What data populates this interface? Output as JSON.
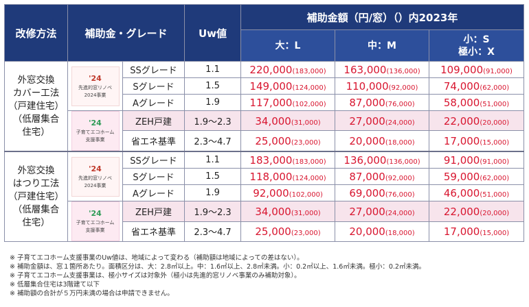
{
  "header": {
    "method": "改修方法",
    "grade": "補助金・グレード",
    "uw": "Uw値",
    "amount_title": "補助金額（円/窓）（）内2023年",
    "size_large": "大：L",
    "size_medium": "中：M",
    "size_small_line1": "小：S",
    "size_small_line2": "極小：X"
  },
  "groups": [
    {
      "method_lines": [
        "外窓交換",
        "カバー工法",
        "（戸建住宅）",
        "（低層集合",
        "住宅）"
      ],
      "logos": [
        {
          "icon": "'24",
          "text_lines": [
            "先進的窓リノベ",
            "2024事業"
          ],
          "icon_name": "window-renovation-logo"
        },
        {
          "icon": "'24",
          "text_lines": [
            "子育てエコホーム",
            "支援事業"
          ],
          "icon_name": "kodomo-eco-home-logo"
        }
      ],
      "rows": [
        {
          "grade": "SSグレード",
          "uw": "1.1",
          "l": "220,000",
          "l_prev": "(183,000)",
          "m": "163,000",
          "m_prev": "(136,000)",
          "s": "109,000",
          "s_prev": "(91,000)",
          "zeh": false
        },
        {
          "grade": "Sグレード",
          "uw": "1.5",
          "l": "149,000",
          "l_prev": "(124,000)",
          "m": "110,000",
          "m_prev": "(92,000)",
          "s": "74,000",
          "s_prev": "(62,000)",
          "zeh": false
        },
        {
          "grade": "Aグレード",
          "uw": "1.9",
          "l": "117,000",
          "l_prev": "(102,000)",
          "m": "87,000",
          "m_prev": "(76,000)",
          "s": "58,000",
          "s_prev": "(51,000)",
          "zeh": false
        },
        {
          "grade": "ZEH戸建",
          "uw": "1.9～2.3",
          "l": "34,000",
          "l_prev": "(31,000)",
          "m": "27,000",
          "m_prev": "(24,000)",
          "s": "22,000",
          "s_prev": "(20,000)",
          "zeh": true
        },
        {
          "grade": "省エネ基準",
          "uw": "2.3～4.7",
          "l": "25,000",
          "l_prev": "(23,000)",
          "m": "20,000",
          "m_prev": "(18,000)",
          "s": "17,000",
          "s_prev": "(15,000)",
          "zeh": false
        }
      ]
    },
    {
      "method_lines": [
        "外窓交換",
        "はつり工法",
        "（戸建住宅）",
        "（低層集合",
        "住宅）"
      ],
      "logos": [
        {
          "icon": "'24",
          "text_lines": [
            "先進的窓リノベ",
            "2024事業"
          ],
          "icon_name": "window-renovation-logo"
        },
        {
          "icon": "'24",
          "text_lines": [
            "子育てエコホーム",
            "支援事業"
          ],
          "icon_name": "kodomo-eco-home-logo"
        }
      ],
      "rows": [
        {
          "grade": "SSグレード",
          "uw": "1.1",
          "l": "183,000",
          "l_prev": "(183,000)",
          "m": "136,000",
          "m_prev": "(136,000)",
          "s": "91,000",
          "s_prev": "(91,000)",
          "zeh": false
        },
        {
          "grade": "Sグレード",
          "uw": "1.5",
          "l": "118,000",
          "l_prev": "(124,000)",
          "m": "87,000",
          "m_prev": "(92,000)",
          "s": "59,000",
          "s_prev": "(62,000)",
          "zeh": false
        },
        {
          "grade": "Aグレード",
          "uw": "1.9",
          "l": "92,000",
          "l_prev": "(102,000)",
          "m": "69,000",
          "m_prev": "(76,000)",
          "s": "46,000",
          "s_prev": "(51,000)",
          "zeh": false
        },
        {
          "grade": "ZEH戸建",
          "uw": "1.9～2.3",
          "l": "34,000",
          "l_prev": "(31,000)",
          "m": "27,000",
          "m_prev": "(24,000)",
          "s": "22,000",
          "s_prev": "(20,000)",
          "zeh": true
        },
        {
          "grade": "省エネ基準",
          "uw": "2.3～4.7",
          "l": "25,000",
          "l_prev": "(23,000)",
          "m": "20,000",
          "m_prev": "(18,000)",
          "s": "17,000",
          "s_prev": "(15,000)",
          "zeh": false
        }
      ]
    }
  ],
  "notes": [
    "※ 子育てエコホーム支援事業のUw値は、地域によって変わる（補助額は地域によっての差はない）。",
    "※ 補助金額は、窓１箇所あたり。面積区分は、大：2.8㎡以上。中：1.6㎡以上、2.8㎡未満。小：0.2㎡以上、1.6㎡未満。極小：0.2㎡未満。",
    "※ 子育てエコホーム支援事業は、極小サイズは対象外（極小は先進的窓リノベ事業のみ補助対象）。",
    "※ 低層集合住宅は3階建て以下",
    "※ 補助額の合計が５万円未満の場合は申請できません。"
  ],
  "colors": {
    "header_bg": "#1f3a7a",
    "amount_red": "#d8152f",
    "zeh_row_bg": "#f7e4ec"
  }
}
